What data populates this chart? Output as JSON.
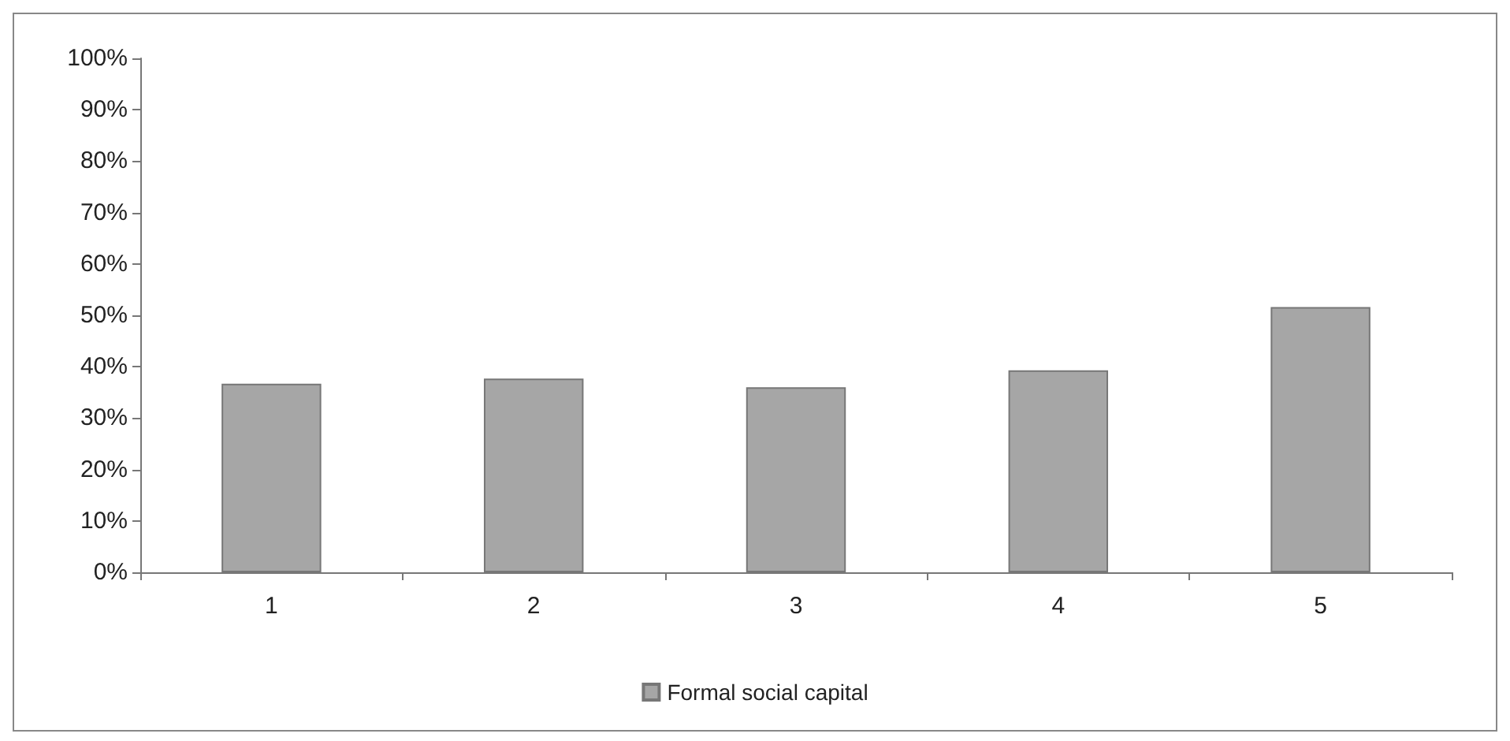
{
  "chart_data": {
    "type": "bar",
    "categories": [
      "1",
      "2",
      "3",
      "4",
      "5"
    ],
    "series": [
      {
        "name": "Formal social capital",
        "color": "#a6a6a6",
        "values": [
          36.7,
          37.7,
          36,
          39.3,
          51.6
        ]
      }
    ],
    "ylim": [
      0,
      100
    ],
    "yticks": [
      {
        "value": 0,
        "label": "0%"
      },
      {
        "value": 10,
        "label": "10%"
      },
      {
        "value": 20,
        "label": "20%"
      },
      {
        "value": 30,
        "label": "30%"
      },
      {
        "value": 40,
        "label": "40%"
      },
      {
        "value": 50,
        "label": "50%"
      },
      {
        "value": 60,
        "label": "60%"
      },
      {
        "value": 70,
        "label": "70%"
      },
      {
        "value": 80,
        "label": "80%"
      },
      {
        "value": 90,
        "label": "90%"
      },
      {
        "value": 100,
        "label": "100%"
      }
    ],
    "grid": false,
    "legend": "bottom"
  }
}
